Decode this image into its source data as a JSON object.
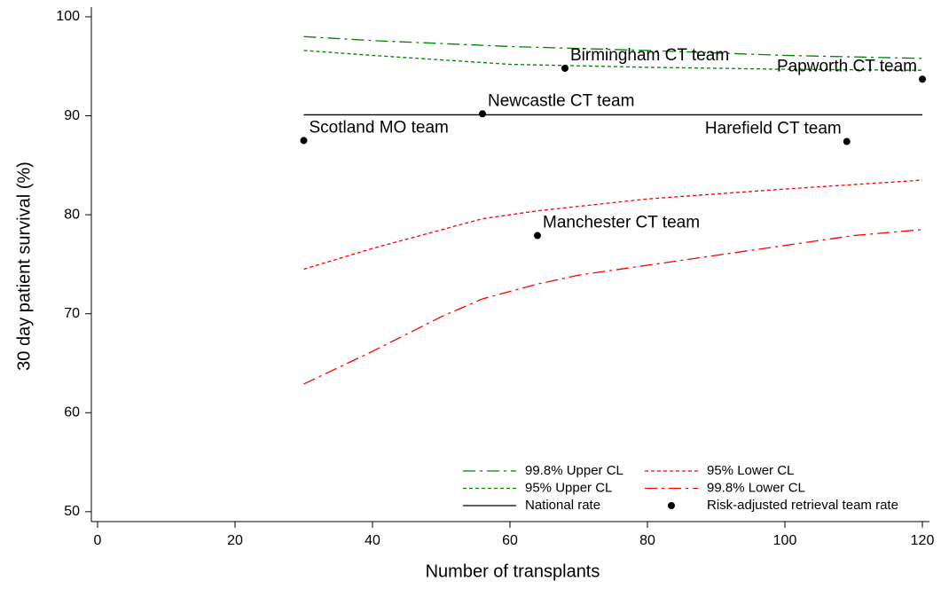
{
  "chart_data": {
    "type": "line",
    "xlabel": "Number of transplants",
    "ylabel": "30 day patient survival (%)",
    "xlim": [
      -1,
      121
    ],
    "ylim": [
      49,
      101
    ],
    "xticks": [
      0,
      20,
      40,
      60,
      80,
      100,
      120
    ],
    "yticks": [
      50,
      60,
      70,
      80,
      90,
      100
    ],
    "legend": "lower right",
    "series": [
      {
        "name": "99.8% Upper CL",
        "color": "#008000",
        "style": "dashdot",
        "x": [
          30,
          40,
          60,
          80,
          100,
          120
        ],
        "values": [
          98.0,
          97.6,
          97.0,
          96.6,
          96.1,
          95.8
        ]
      },
      {
        "name": "95% Upper CL",
        "color": "#008000",
        "style": "dot",
        "x": [
          30,
          40,
          60,
          80,
          100,
          120
        ],
        "values": [
          96.6,
          96.1,
          95.2,
          94.9,
          94.7,
          94.6
        ]
      },
      {
        "name": "National rate",
        "color": "#000000",
        "style": "solid",
        "x": [
          30,
          120
        ],
        "values": [
          90.1,
          90.1
        ]
      },
      {
        "name": "95% Lower CL",
        "color": "#ff0000",
        "style": "dot",
        "x": [
          30,
          40,
          56,
          64,
          80,
          100,
          120
        ],
        "values": [
          74.5,
          76.6,
          79.6,
          80.4,
          81.6,
          82.6,
          83.5
        ]
      },
      {
        "name": "99.8% Lower CL",
        "color": "#ff0000",
        "style": "dashdot",
        "x": [
          30,
          40,
          50,
          56,
          64,
          70,
          80,
          90,
          100,
          110,
          120
        ],
        "values": [
          62.9,
          66.2,
          69.7,
          71.5,
          73.0,
          73.9,
          74.9,
          75.9,
          76.9,
          77.9,
          78.5
        ]
      }
    ],
    "points": {
      "name": "Risk-adjusted retrieval team rate",
      "color": "#000000",
      "x": [
        30,
        56,
        68,
        120,
        109,
        64
      ],
      "values": [
        87.5,
        90.2,
        94.8,
        93.7,
        87.4,
        77.9
      ],
      "labels": [
        "Scotland MO team",
        "Newcastle CT team",
        "Birmingham CT team",
        "Papworth CT team",
        "Harefield CT team",
        "Manchester CT team"
      ]
    }
  }
}
